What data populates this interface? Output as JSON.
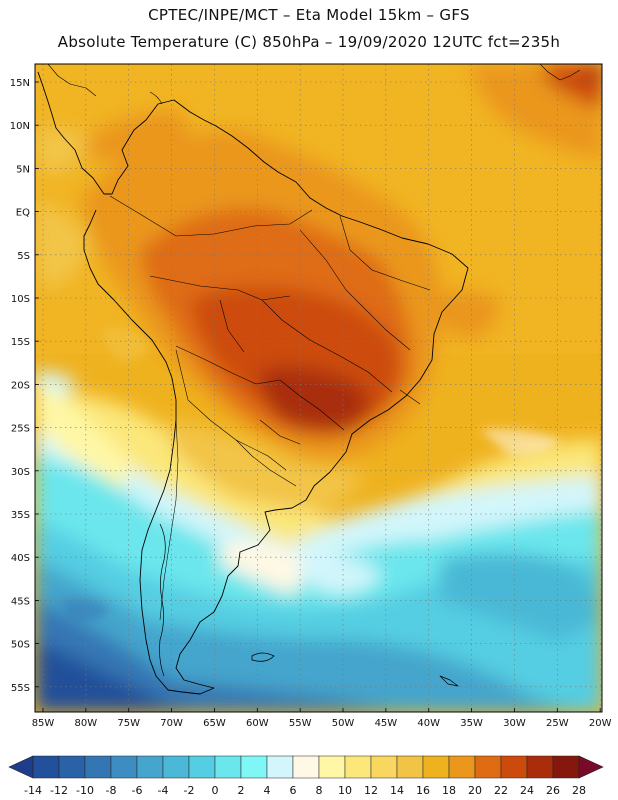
{
  "header": {
    "line1": "CPTEC/INPE/MCT –  Eta Model 15km – GFS",
    "line2": "Absolute Temperature (C) 850hPa – 19/09/2020 12UTC fct=235h"
  },
  "lat_labels": [
    "15N",
    "10N",
    "5N",
    "EQ",
    "5S",
    "10S",
    "15S",
    "20S",
    "25S",
    "30S",
    "35S",
    "40S",
    "45S",
    "50S",
    "55S"
  ],
  "lon_labels": [
    "85W",
    "80W",
    "75W",
    "70W",
    "65W",
    "60W",
    "55W",
    "50W",
    "45W",
    "40W",
    "35W",
    "30W",
    "25W",
    "20W"
  ],
  "colorbar": {
    "labels": [
      "-14",
      "-12",
      "-10",
      "-8",
      "-6",
      "-4",
      "-2",
      "0",
      "2",
      "4",
      "6",
      "8",
      "10",
      "12",
      "14",
      "16",
      "18",
      "20",
      "22",
      "24",
      "26",
      "28"
    ],
    "colors": [
      "#1e3d8c",
      "#23509a",
      "#2a62a8",
      "#3476b4",
      "#3e8dc2",
      "#45a5cc",
      "#4ab8d6",
      "#55cde2",
      "#6ae6ec",
      "#7ff7f7",
      "#d2f6fb",
      "#fff8e4",
      "#fff7a6",
      "#fbe77a",
      "#f8d65f",
      "#f2c446",
      "#efb21f",
      "#ea971b",
      "#df6c12",
      "#cc4b0c",
      "#a92d0a",
      "#86170c",
      "#7a0a2a"
    ]
  }
}
